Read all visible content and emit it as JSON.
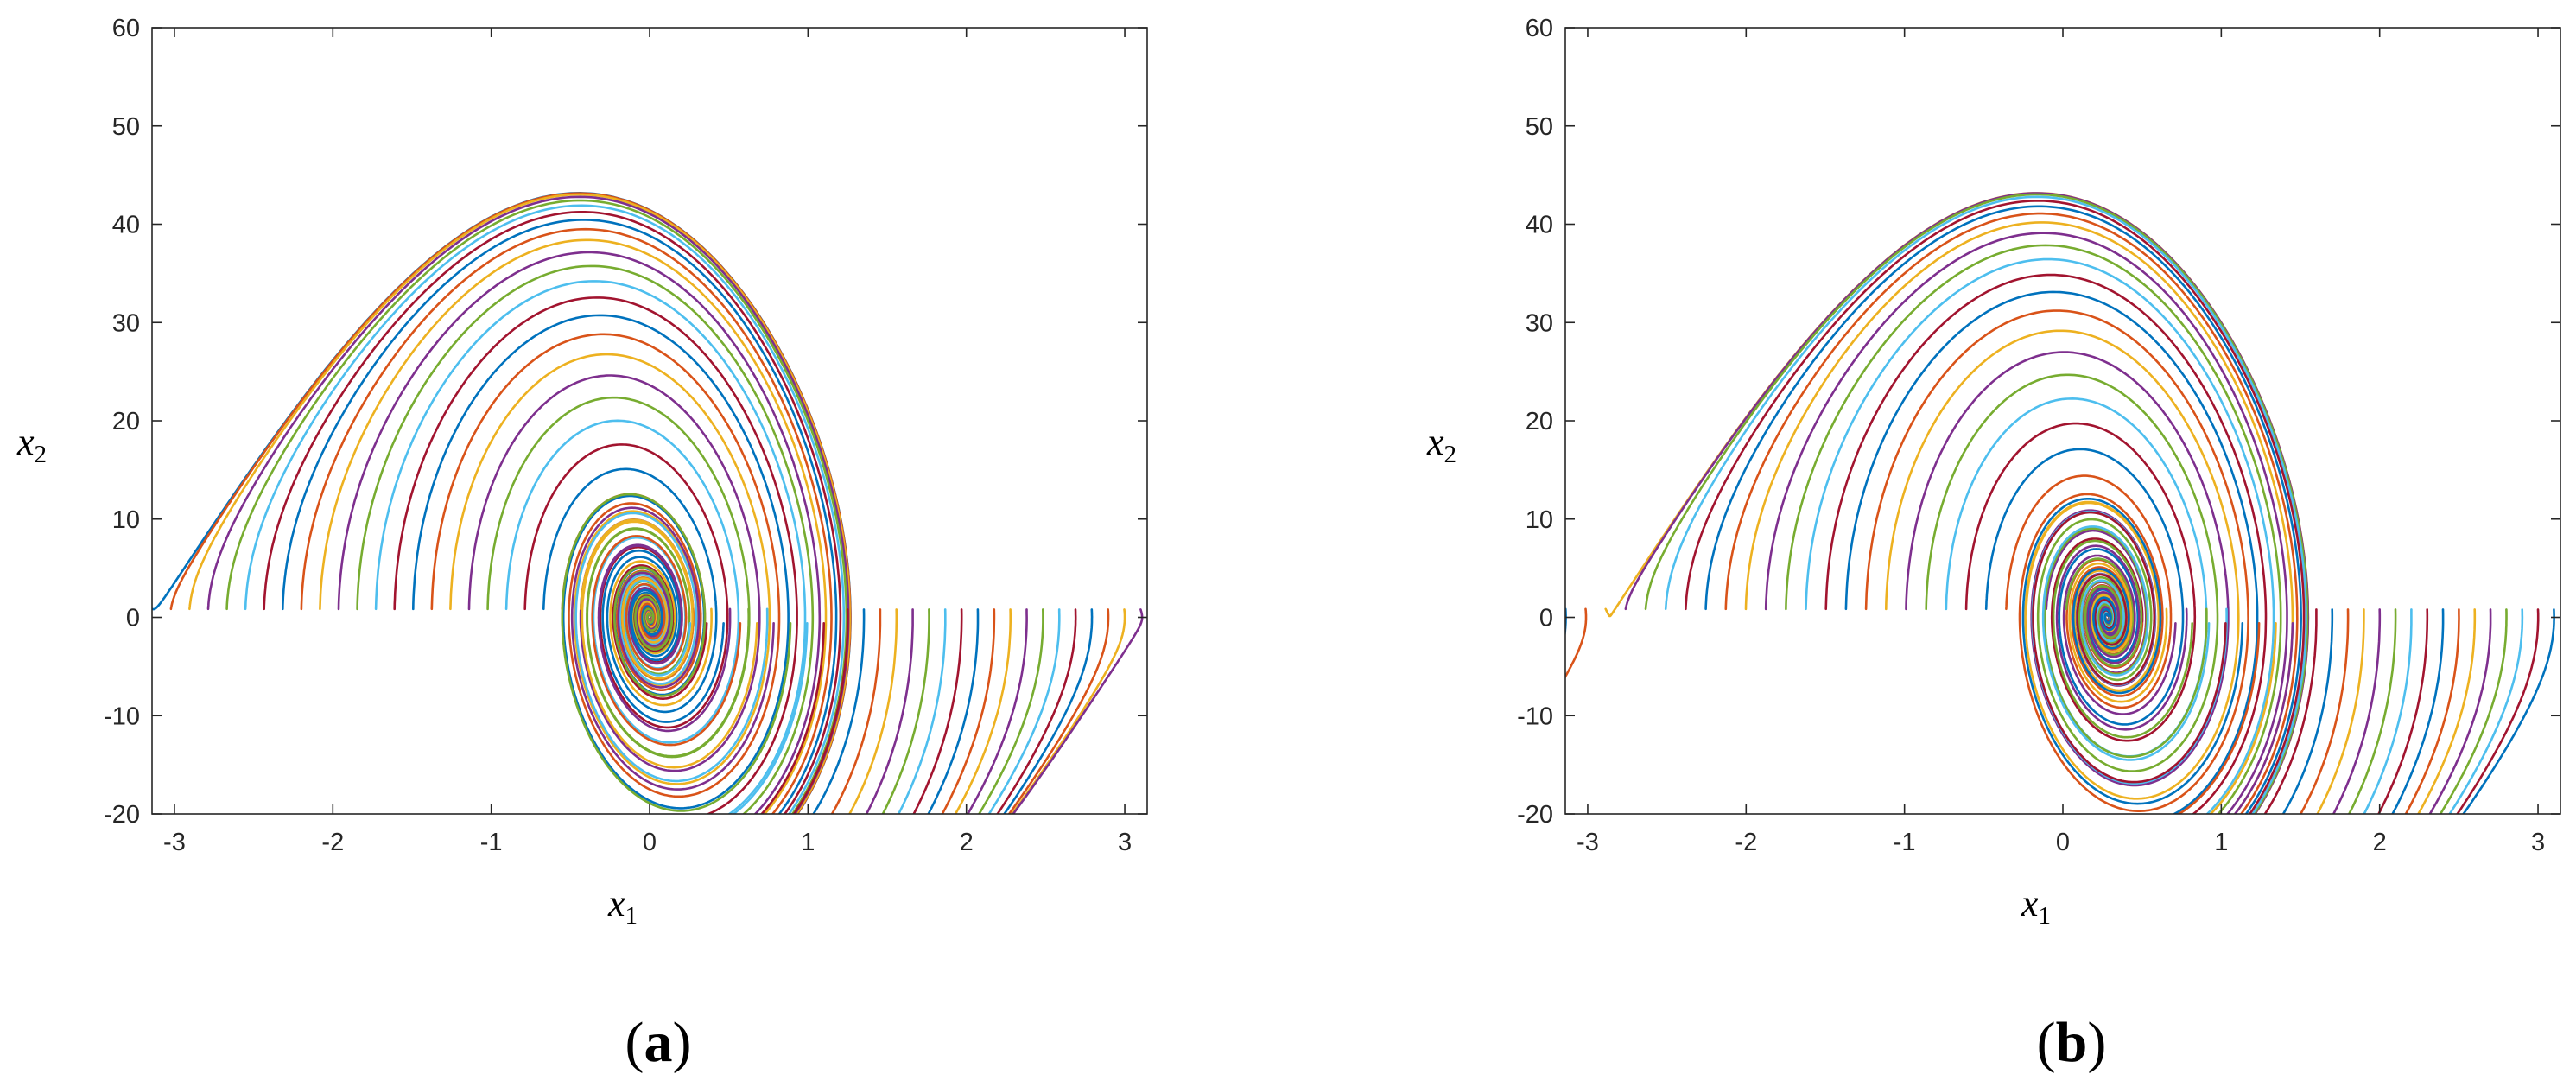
{
  "colors": [
    "#0072BD",
    "#D95319",
    "#EDB120",
    "#7E2F8E",
    "#77AC30",
    "#4DBEEE",
    "#A2142F"
  ],
  "chart_data": [
    {
      "type": "line",
      "panel_label": "a",
      "xlabel": "x",
      "xlabel_sub": "1",
      "ylabel": "x",
      "ylabel_sub": "2",
      "xlim": [
        -3.14159,
        3.14159
      ],
      "ylim": [
        -20,
        60
      ],
      "xticks": [
        "-3",
        "-2",
        "-1",
        "0",
        "1",
        "2",
        "3"
      ],
      "yticks": [
        "-20",
        "-10",
        "0",
        "10",
        "20",
        "30",
        "40",
        "50",
        "60"
      ],
      "grid": false,
      "legend": "none",
      "series_families": [
        {
          "family": "upper-wrap",
          "x_start": -3.14,
          "y_top_range": [
            13.5,
            41.5
          ],
          "count": 19
        },
        {
          "family": "spiral-in",
          "x_start_range": [
            -2.7,
            0.75
          ],
          "y_peak_range": [
            2,
            22
          ],
          "count": 20
        },
        {
          "family": "lower-spiral",
          "x_start_range": [
            0.15,
            1.1
          ],
          "y_min_range": [
            -5,
            -13
          ],
          "count": 10
        },
        {
          "family": "right-lines",
          "x_start_range": [
            1.25,
            3.1
          ],
          "count": 19
        }
      ]
    },
    {
      "type": "line",
      "panel_label": "b",
      "xlabel": "x",
      "xlabel_sub": "1",
      "ylabel": "x",
      "ylabel_sub": "2",
      "xlim": [
        -3.14159,
        3.14159
      ],
      "ylim": [
        -20,
        60
      ],
      "xticks": [
        "-3",
        "-2",
        "-1",
        "0",
        "1",
        "2",
        "3"
      ],
      "yticks": [
        "-20",
        "-10",
        "0",
        "10",
        "20",
        "30",
        "40",
        "50",
        "60"
      ],
      "grid": false,
      "legend": "none",
      "equilibrium_x": 0.28,
      "series_families": [
        {
          "family": "upper-wrap",
          "x_start": -3.14,
          "y_top_range": [
            12.5,
            45.5
          ],
          "count": 19
        },
        {
          "family": "spiral-in",
          "x_start_range": [
            -2.6,
            0.8
          ],
          "y_peak_range": [
            2,
            23
          ],
          "count": 20
        },
        {
          "family": "lower-spiral",
          "x_start_range": [
            0.5,
            1.45
          ],
          "y_min_range": [
            -5,
            -13
          ],
          "count": 10
        },
        {
          "family": "right-lines",
          "x_start_range": [
            1.6,
            3.1
          ],
          "count": 16
        }
      ]
    }
  ]
}
